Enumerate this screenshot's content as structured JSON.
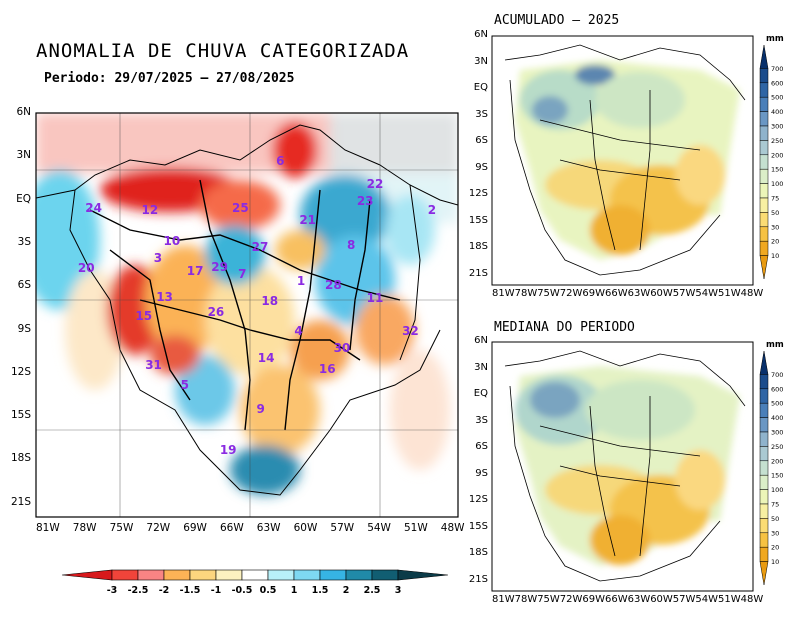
{
  "main_map": {
    "title": "ANOMALIA DE CHUVA CATEGORIZADA",
    "period": "Periodo: 29/07/2025 – 27/08/2025",
    "lat_ticks": [
      "6N",
      "3N",
      "EQ",
      "3S",
      "6S",
      "9S",
      "12S",
      "15S",
      "18S",
      "21S"
    ],
    "lon_ticks": [
      "81W",
      "78W",
      "75W",
      "72W",
      "69W",
      "66W",
      "63W",
      "60W",
      "57W",
      "54W",
      "51W",
      "48W"
    ],
    "basins": [
      {
        "id": "1",
        "lon": -60.1,
        "lat": -5.8
      },
      {
        "id": "2",
        "lon": -49.4,
        "lat": -0.8
      },
      {
        "id": "3",
        "lon": -71.8,
        "lat": -4.2
      },
      {
        "id": "4",
        "lon": -60.3,
        "lat": -9.3
      },
      {
        "id": "5",
        "lon": -69.6,
        "lat": -13.1
      },
      {
        "id": "6",
        "lon": -61.8,
        "lat": 2.6
      },
      {
        "id": "7",
        "lon": -64.9,
        "lat": -5.3
      },
      {
        "id": "8",
        "lon": -56.0,
        "lat": -3.3
      },
      {
        "id": "9",
        "lon": -63.4,
        "lat": -14.8
      },
      {
        "id": "10",
        "lon": -71.0,
        "lat": -3.0
      },
      {
        "id": "11",
        "lon": -54.4,
        "lat": -7.0
      },
      {
        "id": "12",
        "lon": -72.8,
        "lat": -0.8
      },
      {
        "id": "13",
        "lon": -71.6,
        "lat": -6.9
      },
      {
        "id": "14",
        "lon": -63.3,
        "lat": -11.2
      },
      {
        "id": "15",
        "lon": -73.3,
        "lat": -8.3
      },
      {
        "id": "16",
        "lon": -58.3,
        "lat": -12.0
      },
      {
        "id": "17",
        "lon": -69.1,
        "lat": -5.1
      },
      {
        "id": "18",
        "lon": -63.0,
        "lat": -7.2
      },
      {
        "id": "19",
        "lon": -66.4,
        "lat": -17.7
      },
      {
        "id": "20",
        "lon": -78.0,
        "lat": -4.9
      },
      {
        "id": "21",
        "lon": -59.9,
        "lat": -1.5
      },
      {
        "id": "22",
        "lon": -54.4,
        "lat": 1.0
      },
      {
        "id": "23",
        "lon": -55.2,
        "lat": -0.2
      },
      {
        "id": "24",
        "lon": -77.4,
        "lat": -0.7
      },
      {
        "id": "25",
        "lon": -65.4,
        "lat": -0.7
      },
      {
        "id": "26",
        "lon": -67.4,
        "lat": -8.0
      },
      {
        "id": "27",
        "lon": -63.8,
        "lat": -3.4
      },
      {
        "id": "28",
        "lon": -57.8,
        "lat": -6.1
      },
      {
        "id": "29",
        "lon": -67.1,
        "lat": -4.8
      },
      {
        "id": "30",
        "lon": -57.1,
        "lat": -10.5
      },
      {
        "id": "31",
        "lon": -72.5,
        "lat": -11.7
      },
      {
        "id": "32",
        "lon": -51.5,
        "lat": -9.3
      }
    ]
  },
  "colorbar_main": {
    "labels": [
      "-3",
      "-2.5",
      "-2",
      "-1.5",
      "-1",
      "-0.5",
      "0.5",
      "1",
      "1.5",
      "2",
      "2.5",
      "3"
    ],
    "colors": [
      "#d7191c",
      "#f0443a",
      "#f88484",
      "#fcb356",
      "#fcd67e",
      "#fdf2c0",
      "#ffffff",
      "#b8f0f8",
      "#7ed8f2",
      "#36b4e4",
      "#208aa8",
      "#115e72",
      "#0b3b48"
    ]
  },
  "acc_map": {
    "title": "ACUMULADO – 2025",
    "lat_ticks": [
      "6N",
      "3N",
      "EQ",
      "3S",
      "6S",
      "9S",
      "12S",
      "15S",
      "18S",
      "21S"
    ],
    "lon_ticks": [
      "81W",
      "78W",
      "75W",
      "72W",
      "69W",
      "66W",
      "63W",
      "60W",
      "57W",
      "54W",
      "51W",
      "48W"
    ]
  },
  "med_map": {
    "title": "MEDIANA DO PERIODO",
    "lat_ticks": [
      "6N",
      "3N",
      "EQ",
      "3S",
      "6S",
      "9S",
      "12S",
      "15S",
      "18S",
      "21S"
    ],
    "lon_ticks": [
      "81W",
      "78W",
      "75W",
      "72W",
      "69W",
      "66W",
      "63W",
      "60W",
      "57W",
      "54W",
      "51W",
      "48W"
    ]
  },
  "colorbar_mm": {
    "unit": "mm",
    "labels": [
      "700",
      "600",
      "500",
      "400",
      "300",
      "250",
      "200",
      "150",
      "100",
      "75",
      "50",
      "30",
      "20",
      "10"
    ],
    "colors": [
      "#08306b",
      "#1b4c8c",
      "#2f65a5",
      "#4a7fb9",
      "#6a97c4",
      "#8fb3cc",
      "#aac9d2",
      "#c5e0d0",
      "#dbeec8",
      "#ecf5b8",
      "#f8f0a2",
      "#fbdc74",
      "#f6c243",
      "#f0a820",
      "#e89a10"
    ]
  }
}
